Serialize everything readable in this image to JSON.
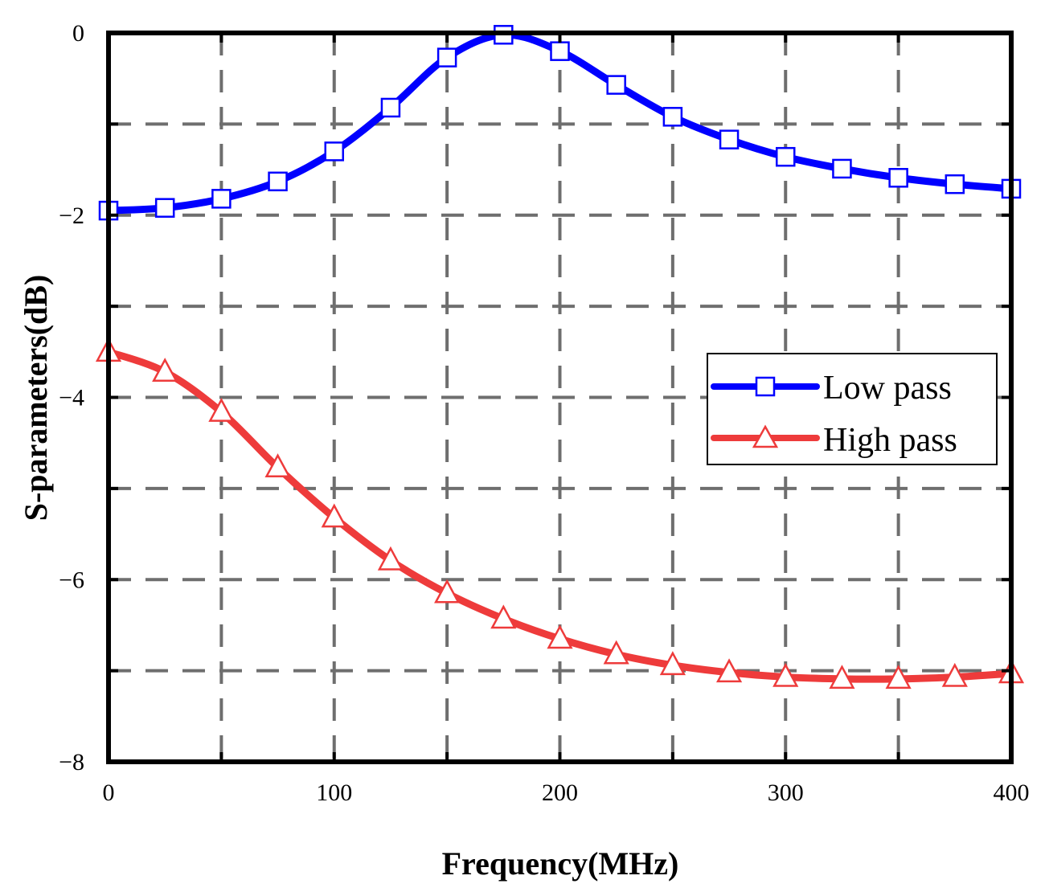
{
  "chart_data": {
    "type": "line",
    "title": "",
    "xlabel": "Frequency(MHz)",
    "ylabel": "S-parameters(dB)",
    "xlim": [
      0,
      400
    ],
    "ylim": [
      -8,
      0
    ],
    "xticks": [
      0,
      100,
      200,
      300,
      400
    ],
    "yticks": [
      0,
      -2,
      -4,
      -6,
      -8
    ],
    "xtick_labels": [
      "0",
      "100",
      "200",
      "300",
      "400"
    ],
    "ytick_labels": [
      "0",
      "−2",
      "−4",
      "−6",
      "−8"
    ],
    "grid": true,
    "legend_position": "center-right",
    "x": [
      0,
      25,
      50,
      75,
      100,
      125,
      150,
      175,
      200,
      225,
      250,
      275,
      300,
      325,
      350,
      375,
      400
    ],
    "series": [
      {
        "name": "Low pass",
        "color": "#0000ff",
        "marker": "square",
        "values": [
          -1.95,
          -1.92,
          -1.82,
          -1.63,
          -1.3,
          -0.82,
          -0.27,
          -0.02,
          -0.2,
          -0.57,
          -0.92,
          -1.17,
          -1.36,
          -1.49,
          -1.59,
          -1.66,
          -1.71
        ]
      },
      {
        "name": "High pass",
        "color": "#ee3b3b",
        "marker": "triangle",
        "values": [
          -3.5,
          -3.72,
          -4.16,
          -4.77,
          -5.32,
          -5.79,
          -6.15,
          -6.43,
          -6.65,
          -6.82,
          -6.94,
          -7.02,
          -7.07,
          -7.09,
          -7.09,
          -7.07,
          -7.03
        ]
      }
    ]
  }
}
